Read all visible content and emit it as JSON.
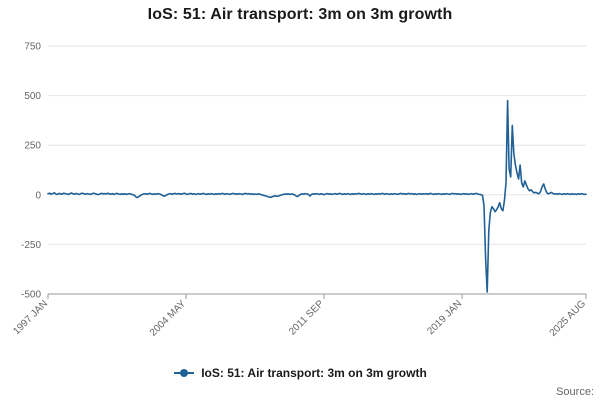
{
  "title": "IoS: 51: Air transport: 3m on 3m growth",
  "legend": {
    "label": "IoS: 51: Air transport: 3m on 3m growth"
  },
  "source_label": "Source:",
  "colors": {
    "line": "#206095",
    "grid": "#e6e6e6",
    "axis": "#999999",
    "text": "#666666",
    "title": "#1a1a1a"
  },
  "chart_data": {
    "type": "line",
    "title": "IoS: 51: Air transport: 3m on 3m growth",
    "series_name": "IoS: 51: Air transport: 3m on 3m growth",
    "x_start": "1997 JAN",
    "x_end": "2025 AUG",
    "x_frequency": "monthly",
    "xticks": [
      {
        "label": "1997 JAN",
        "index": 0
      },
      {
        "label": "2004 MAY",
        "index": 88
      },
      {
        "label": "2011 SEP",
        "index": 176
      },
      {
        "label": "2019 JAN",
        "index": 264
      },
      {
        "label": "2025 AUG",
        "index": 343
      }
    ],
    "ylim": [
      -500,
      750
    ],
    "yticks": [
      750,
      500,
      250,
      0,
      -250,
      -500
    ],
    "grid": true,
    "legend_position": "bottom",
    "values": [
      5,
      8,
      3,
      6,
      10,
      4,
      2,
      7,
      5,
      3,
      8,
      6,
      4,
      2,
      6,
      9,
      5,
      3,
      7,
      4,
      2,
      6,
      8,
      5,
      3,
      6,
      4,
      2,
      5,
      8,
      6,
      3,
      1,
      4,
      7,
      5,
      6,
      4,
      8,
      5,
      3,
      6,
      2,
      5,
      7,
      4,
      2,
      5,
      3,
      5,
      2,
      4,
      6,
      3,
      1,
      -2,
      -10,
      -14,
      -8,
      -3,
      2,
      4,
      6,
      3,
      5,
      7,
      4,
      2,
      5,
      3,
      6,
      4,
      2,
      -3,
      -7,
      -4,
      1,
      4,
      6,
      3,
      5,
      7,
      4,
      6,
      5,
      3,
      6,
      8,
      4,
      2,
      5,
      7,
      3,
      5,
      2,
      4,
      6,
      3,
      5,
      7,
      4,
      2,
      5,
      3,
      6,
      4,
      2,
      5,
      3,
      6,
      4,
      7,
      5,
      3,
      6,
      4,
      2,
      5,
      7,
      4,
      5,
      3,
      6,
      4,
      2,
      5,
      7,
      4,
      6,
      3,
      5,
      2,
      4,
      2,
      5,
      3,
      1,
      -2,
      -4,
      -6,
      -9,
      -11,
      -13,
      -9,
      -7,
      -5,
      -8,
      -6,
      -3,
      -1,
      2,
      4,
      3,
      5,
      2,
      4,
      3,
      1,
      -5,
      -9,
      -3,
      2,
      5,
      3,
      6,
      4,
      2,
      -6,
      2,
      5,
      3,
      6,
      4,
      2,
      5,
      3,
      1,
      4,
      6,
      3,
      5,
      2,
      4,
      6,
      3,
      5,
      7,
      4,
      2,
      5,
      3,
      6,
      4,
      2,
      5,
      3,
      6,
      4,
      7,
      5,
      3,
      6,
      4,
      2,
      5,
      3,
      6,
      4,
      2,
      5,
      3,
      6,
      4,
      7,
      5,
      3,
      6,
      4,
      2,
      5,
      3,
      6,
      4,
      2,
      5,
      7,
      4,
      6,
      3,
      5,
      7,
      4,
      6,
      3,
      5,
      2,
      4,
      6,
      3,
      5,
      4,
      6,
      3,
      5,
      7,
      4,
      2,
      5,
      3,
      6,
      4,
      2,
      5,
      3,
      6,
      4,
      2,
      5,
      7,
      4,
      6,
      3,
      5,
      2,
      4,
      6,
      3,
      5,
      2,
      4,
      6,
      3,
      5,
      7,
      4,
      2,
      1,
      -2,
      -55,
      -320,
      -490,
      -180,
      -90,
      -60,
      -70,
      -85,
      -75,
      -60,
      -40,
      -70,
      -80,
      -30,
      60,
      475,
      130,
      90,
      350,
      210,
      150,
      110,
      80,
      150,
      60,
      40,
      70,
      50,
      30,
      20,
      25,
      15,
      10,
      12,
      8,
      5,
      15,
      40,
      55,
      30,
      10,
      5,
      8,
      12,
      6,
      4,
      5,
      3,
      6,
      4,
      2,
      5,
      3,
      6,
      4,
      2,
      5,
      3,
      4,
      2,
      5,
      3,
      6,
      4,
      2,
      3
    ]
  }
}
